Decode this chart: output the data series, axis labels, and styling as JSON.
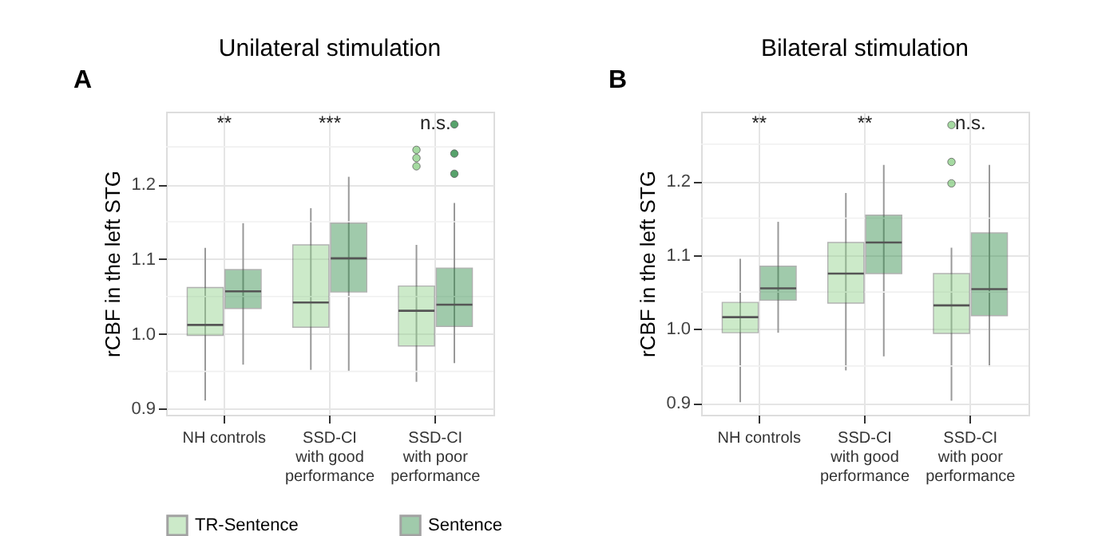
{
  "chart_data": [
    {
      "type": "box",
      "title": "Unilateral stimulation",
      "ylabel": "rCBF in the left STG",
      "categories": [
        "NH controls",
        "SSD-CI\nwith good\nperformance",
        "SSD-CI\nwith poor\nperformance"
      ],
      "ylim": [
        0.892,
        1.297
      ],
      "yticks": [
        {
          "value": 0.9,
          "label": "0.9"
        },
        {
          "value": 0.95,
          "label": null
        },
        {
          "value": 1.0,
          "label": "1.0"
        },
        {
          "value": 1.05,
          "label": null
        },
        {
          "value": 1.1,
          "label": "1.1"
        },
        {
          "value": 1.15,
          "label": null
        },
        {
          "value": 1.2,
          "label": "1.2"
        },
        {
          "value": 1.25,
          "label": null
        }
      ],
      "grid": true,
      "legend": "bottom",
      "series": [
        {
          "name": "TR-Sentence",
          "color": "#8fd18a",
          "boxes": [
            {
              "low": 0.911,
              "q1": 0.998,
              "median": 1.012,
              "q3": 1.062,
              "high": 1.115
            },
            {
              "low": 0.952,
              "q1": 1.009,
              "median": 1.042,
              "q3": 1.119,
              "high": 1.168
            },
            {
              "low": 0.936,
              "q1": 0.984,
              "median": 1.031,
              "q3": 1.064,
              "high": 1.119,
              "outliers": [
                1.224,
                1.235,
                1.246
              ]
            }
          ]
        },
        {
          "name": "Sentence",
          "color": "#2e8b47",
          "boxes": [
            {
              "low": 0.959,
              "q1": 1.034,
              "median": 1.057,
              "q3": 1.086,
              "high": 1.148
            },
            {
              "low": 0.95,
              "q1": 1.056,
              "median": 1.101,
              "q3": 1.148,
              "high": 1.21
            },
            {
              "low": 0.961,
              "q1": 1.01,
              "median": 1.039,
              "q3": 1.088,
              "high": 1.175,
              "outliers": [
                1.214,
                1.241,
                1.28
              ]
            }
          ]
        }
      ],
      "annotations": [
        "A",
        "**",
        "***",
        "n.s."
      ]
    },
    {
      "type": "box",
      "title": "Bilateral stimulation",
      "ylabel": "rCBF in the left STG",
      "categories": [
        "NH controls",
        "SSD-CI\nwith good\nperformance",
        "SSD-CI\nwith poor\nperformance"
      ],
      "ylim": [
        0.884,
        1.294
      ],
      "yticks": [
        {
          "value": 0.9,
          "label": "0.9"
        },
        {
          "value": 0.95,
          "label": null
        },
        {
          "value": 1.0,
          "label": "1.0"
        },
        {
          "value": 1.05,
          "label": null
        },
        {
          "value": 1.1,
          "label": "1.1"
        },
        {
          "value": 1.15,
          "label": null
        },
        {
          "value": 1.2,
          "label": "1.2"
        },
        {
          "value": 1.25,
          "label": null
        }
      ],
      "grid": true,
      "legend": "bottom",
      "series": [
        {
          "name": "TR-Sentence",
          "color": "#8fd18a",
          "boxes": [
            {
              "low": 0.901,
              "q1": 0.995,
              "median": 1.016,
              "q3": 1.036,
              "high": 1.095
            },
            {
              "low": 0.944,
              "q1": 1.035,
              "median": 1.075,
              "q3": 1.117,
              "high": 1.184
            },
            {
              "low": 0.903,
              "q1": 0.994,
              "median": 1.032,
              "q3": 1.075,
              "high": 1.11,
              "outliers": [
                1.197,
                1.226,
                1.276
              ]
            }
          ]
        },
        {
          "name": "Sentence",
          "color": "#2e8b47",
          "boxes": [
            {
              "low": 0.995,
              "q1": 1.039,
              "median": 1.055,
              "q3": 1.085,
              "high": 1.145
            },
            {
              "low": 0.963,
              "q1": 1.075,
              "median": 1.117,
              "q3": 1.154,
              "high": 1.222
            },
            {
              "low": 0.949,
              "q1": 1.018,
              "median": 1.054,
              "q3": 1.13,
              "high": 1.222
            }
          ]
        }
      ],
      "annotations": [
        "B",
        "**",
        "**",
        "n.s."
      ]
    }
  ]
}
